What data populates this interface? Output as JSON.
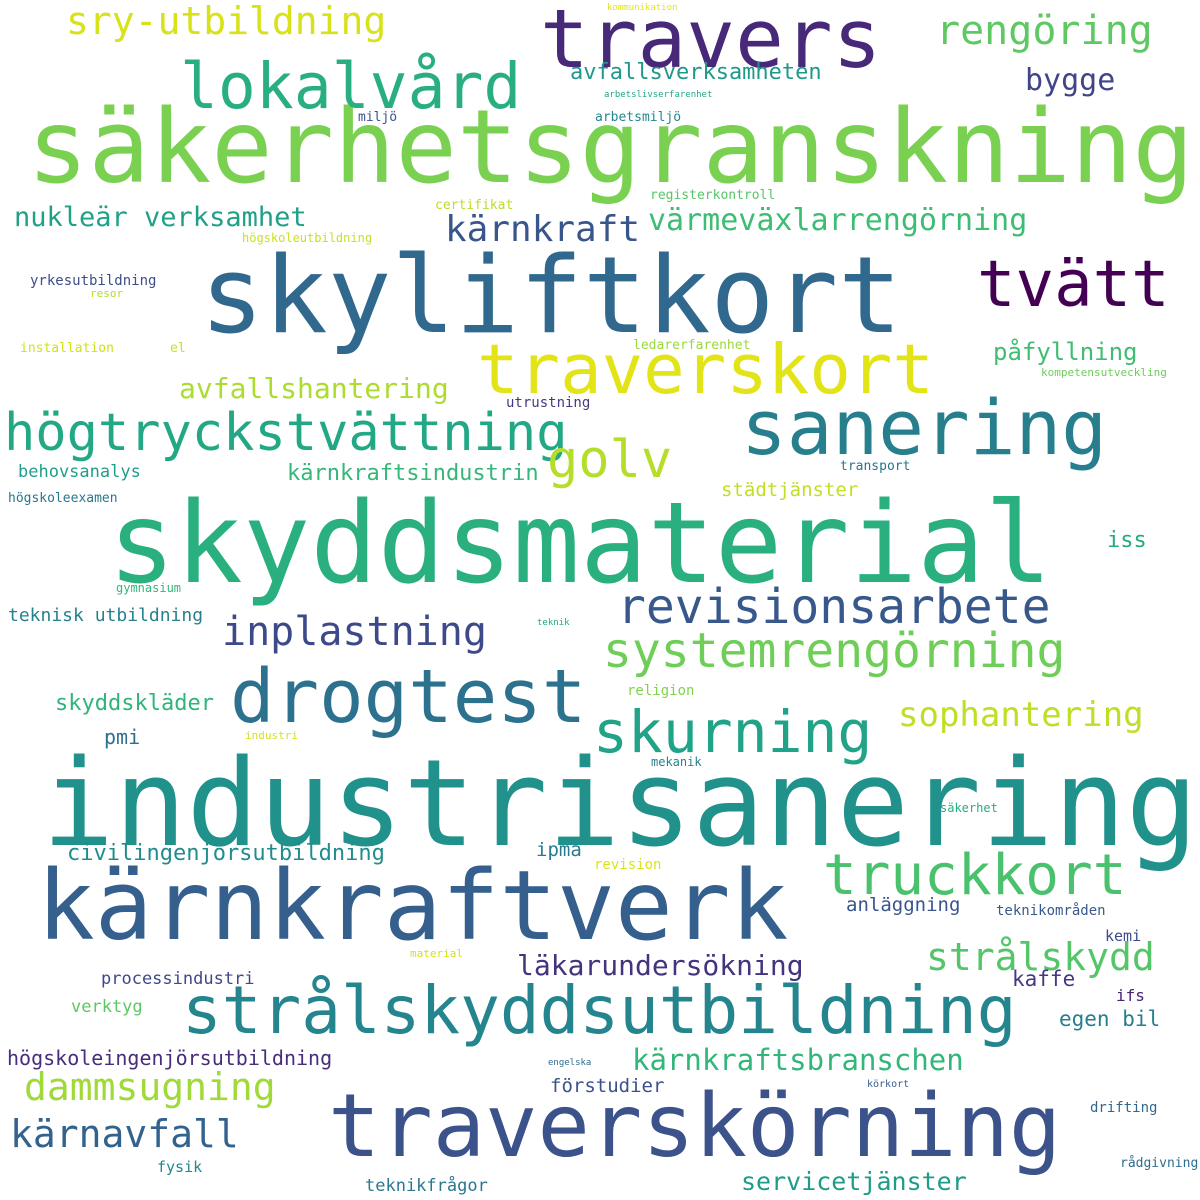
{
  "words": [
    {
      "text": "industrisanering",
      "color": "#21918c"
    },
    {
      "text": "säkerhetsgranskning",
      "color": "#7ad151"
    },
    {
      "text": "skyddsmaterial",
      "color": "#2ab07f"
    },
    {
      "text": "skyliftkort",
      "color": "#31688e"
    },
    {
      "text": "kärnkraftverk",
      "color": "#355f8d"
    },
    {
      "text": "traverskörning",
      "color": "#3b528b"
    },
    {
      "text": "travers",
      "color": "#482878"
    },
    {
      "text": "strålskyddsutbildning",
      "color": "#25858e"
    },
    {
      "text": "drogtest",
      "color": "#2c728e"
    },
    {
      "text": "sanering",
      "color": "#277f8e"
    },
    {
      "text": "traverskort",
      "color": "#e2e418"
    },
    {
      "text": "lokalvård",
      "color": "#29af7f"
    },
    {
      "text": "högtryckstvättning",
      "color": "#22a884"
    },
    {
      "text": "tvätt",
      "color": "#440154"
    },
    {
      "text": "skurning",
      "color": "#20a386"
    },
    {
      "text": "truckkort",
      "color": "#4ac16d"
    },
    {
      "text": "revisionsarbete",
      "color": "#38588c"
    },
    {
      "text": "systemrengörning",
      "color": "#6ece58"
    },
    {
      "text": "golv",
      "color": "#b5de2b"
    },
    {
      "text": "inplastning",
      "color": "#3e4989"
    },
    {
      "text": "sry-utbildning",
      "color": "#d8e219"
    },
    {
      "text": "rengöring",
      "color": "#5ec962"
    },
    {
      "text": "strålskydd",
      "color": "#54c568"
    },
    {
      "text": "dammsugning",
      "color": "#a0da39"
    },
    {
      "text": "kärnavfall",
      "color": "#33638d"
    },
    {
      "text": "kärnkraft",
      "color": "#39568c"
    },
    {
      "text": "sophantering",
      "color": "#bddf26"
    },
    {
      "text": "kärnkraftsbranschen",
      "color": "#32b67a"
    },
    {
      "text": "läkarundersökning",
      "color": "#46337e"
    },
    {
      "text": "värmeväxlarrengörning",
      "color": "#3dbc74"
    },
    {
      "text": "avfallshantering",
      "color": "#addc30"
    },
    {
      "text": "nukleär verksamhet",
      "color": "#1fa188"
    },
    {
      "text": "servicetjänster",
      "color": "#1e9c89"
    },
    {
      "text": "bygge",
      "color": "#414487"
    },
    {
      "text": "påfyllning",
      "color": "#40bd72"
    },
    {
      "text": "avfallsverksamheten",
      "color": "#1f988b"
    },
    {
      "text": "kärnkraftsindustrin",
      "color": "#35b779"
    },
    {
      "text": "skyddskläder",
      "color": "#2fb47c"
    },
    {
      "text": "civilingenjörsutbildning",
      "color": "#228c8d"
    },
    {
      "text": "högskoleingenjörsutbildning",
      "color": "#472d7b"
    },
    {
      "text": "städtjänster",
      "color": "#c0df25"
    },
    {
      "text": "iss",
      "color": "#24aa83"
    },
    {
      "text": "kaffe",
      "color": "#443983"
    },
    {
      "text": "egen bil",
      "color": "#277e8e"
    },
    {
      "text": "anläggning",
      "color": "#3a548c"
    },
    {
      "text": "förstudier",
      "color": "#3b518b"
    },
    {
      "text": "teknikfrågor",
      "color": "#2a778e"
    },
    {
      "text": "pmi",
      "color": "#2d708e"
    },
    {
      "text": "ipma",
      "color": "#287c8e"
    },
    {
      "text": "teknisk utbildning",
      "color": "#26818e"
    },
    {
      "text": "behovsanalys",
      "color": "#1f9e89"
    },
    {
      "text": "processindustri",
      "color": "#3f4889"
    },
    {
      "text": "verktyg",
      "color": "#5cc863"
    },
    {
      "text": "fysik",
      "color": "#23888e"
    },
    {
      "text": "ifs",
      "color": "#482173"
    },
    {
      "text": "kemi",
      "color": "#3e4a89"
    },
    {
      "text": "teknikområden",
      "color": "#38598c"
    },
    {
      "text": "drifting",
      "color": "#31678e"
    },
    {
      "text": "rådgivning",
      "color": "#2e6e8e"
    },
    {
      "text": "transport",
      "color": "#2c738e"
    },
    {
      "text": "utrustning",
      "color": "#443a83"
    },
    {
      "text": "högskoleexamen",
      "color": "#2a768e"
    },
    {
      "text": "yrkesutbildning",
      "color": "#3d4e8a"
    },
    {
      "text": "registerkontroll",
      "color": "#56c667"
    },
    {
      "text": "arbetsmiljö",
      "color": "#24878e"
    },
    {
      "text": "miljö",
      "color": "#3b528b"
    },
    {
      "text": "certifikat",
      "color": "#bade28"
    },
    {
      "text": "högskoleutbildning",
      "color": "#cae11f"
    },
    {
      "text": "installation",
      "color": "#d0e11c"
    },
    {
      "text": "el",
      "color": "#c8e020"
    },
    {
      "text": "resor",
      "color": "#b2dd2d"
    },
    {
      "text": "ledarerfarenhet",
      "color": "#9bd93c"
    },
    {
      "text": "kompetensutveckling",
      "color": "#6ccd5a"
    },
    {
      "text": "gymnasium",
      "color": "#34b679"
    },
    {
      "text": "teknik",
      "color": "#23a983"
    },
    {
      "text": "religion",
      "color": "#7fd34e"
    },
    {
      "text": "industri",
      "color": "#d5e21a"
    },
    {
      "text": "mekanik",
      "color": "#25848e"
    },
    {
      "text": "säkerhet",
      "color": "#26ad81"
    },
    {
      "text": "revision",
      "color": "#dde318"
    },
    {
      "text": "material",
      "color": "#d2e21b"
    },
    {
      "text": "engelska",
      "color": "#2f6c8e"
    },
    {
      "text": "körkort",
      "color": "#365c8d"
    },
    {
      "text": "arbetslivserfarenhet",
      "color": "#22a785"
    },
    {
      "text": "kommunikation",
      "color": "#e5e419"
    }
  ]
}
